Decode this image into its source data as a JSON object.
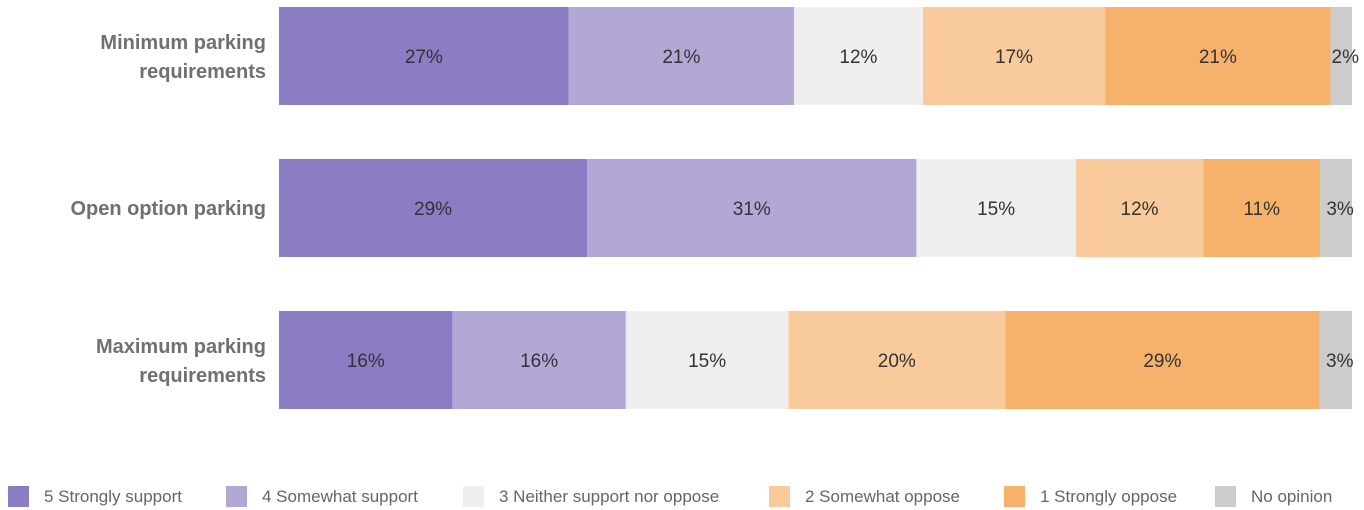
{
  "chart_data": {
    "type": "bar",
    "orientation": "horizontal",
    "stacked": true,
    "title": "",
    "xlabel": "",
    "ylabel": "",
    "xlim": [
      0,
      100
    ],
    "grid": false,
    "legend_position": "bottom",
    "categories": [
      [
        "Minimum parking",
        "requirements"
      ],
      [
        "Open option parking"
      ],
      [
        "Maximum parking",
        "requirements"
      ]
    ],
    "series": [
      {
        "name": "5 Strongly support",
        "color": "#8b7cc3",
        "values": [
          27,
          29,
          16
        ],
        "labels": [
          "27%",
          "29%",
          "16%"
        ]
      },
      {
        "name": "4 Somewhat support",
        "color": "#b3a7d6",
        "values": [
          21,
          31,
          16
        ],
        "labels": [
          "21%",
          "31%",
          "16%"
        ]
      },
      {
        "name": "3 Neither support nor oppose",
        "color": "#efefef",
        "values": [
          12,
          15,
          15
        ],
        "labels": [
          "12%",
          "15%",
          "15%"
        ]
      },
      {
        "name": "2 Somewhat oppose",
        "color": "#f9cb9c",
        "values": [
          17,
          12,
          20
        ],
        "labels": [
          "17%",
          "12%",
          "20%"
        ]
      },
      {
        "name": "1 Strongly oppose",
        "color": "#f6b26b",
        "values": [
          21,
          11,
          29
        ],
        "labels": [
          "21%",
          "11%",
          "29%"
        ]
      },
      {
        "name": "No opinion",
        "color": "#cccccc",
        "values": [
          2,
          3,
          3
        ],
        "labels": [
          "2%",
          "3%",
          "3%"
        ]
      }
    ]
  }
}
